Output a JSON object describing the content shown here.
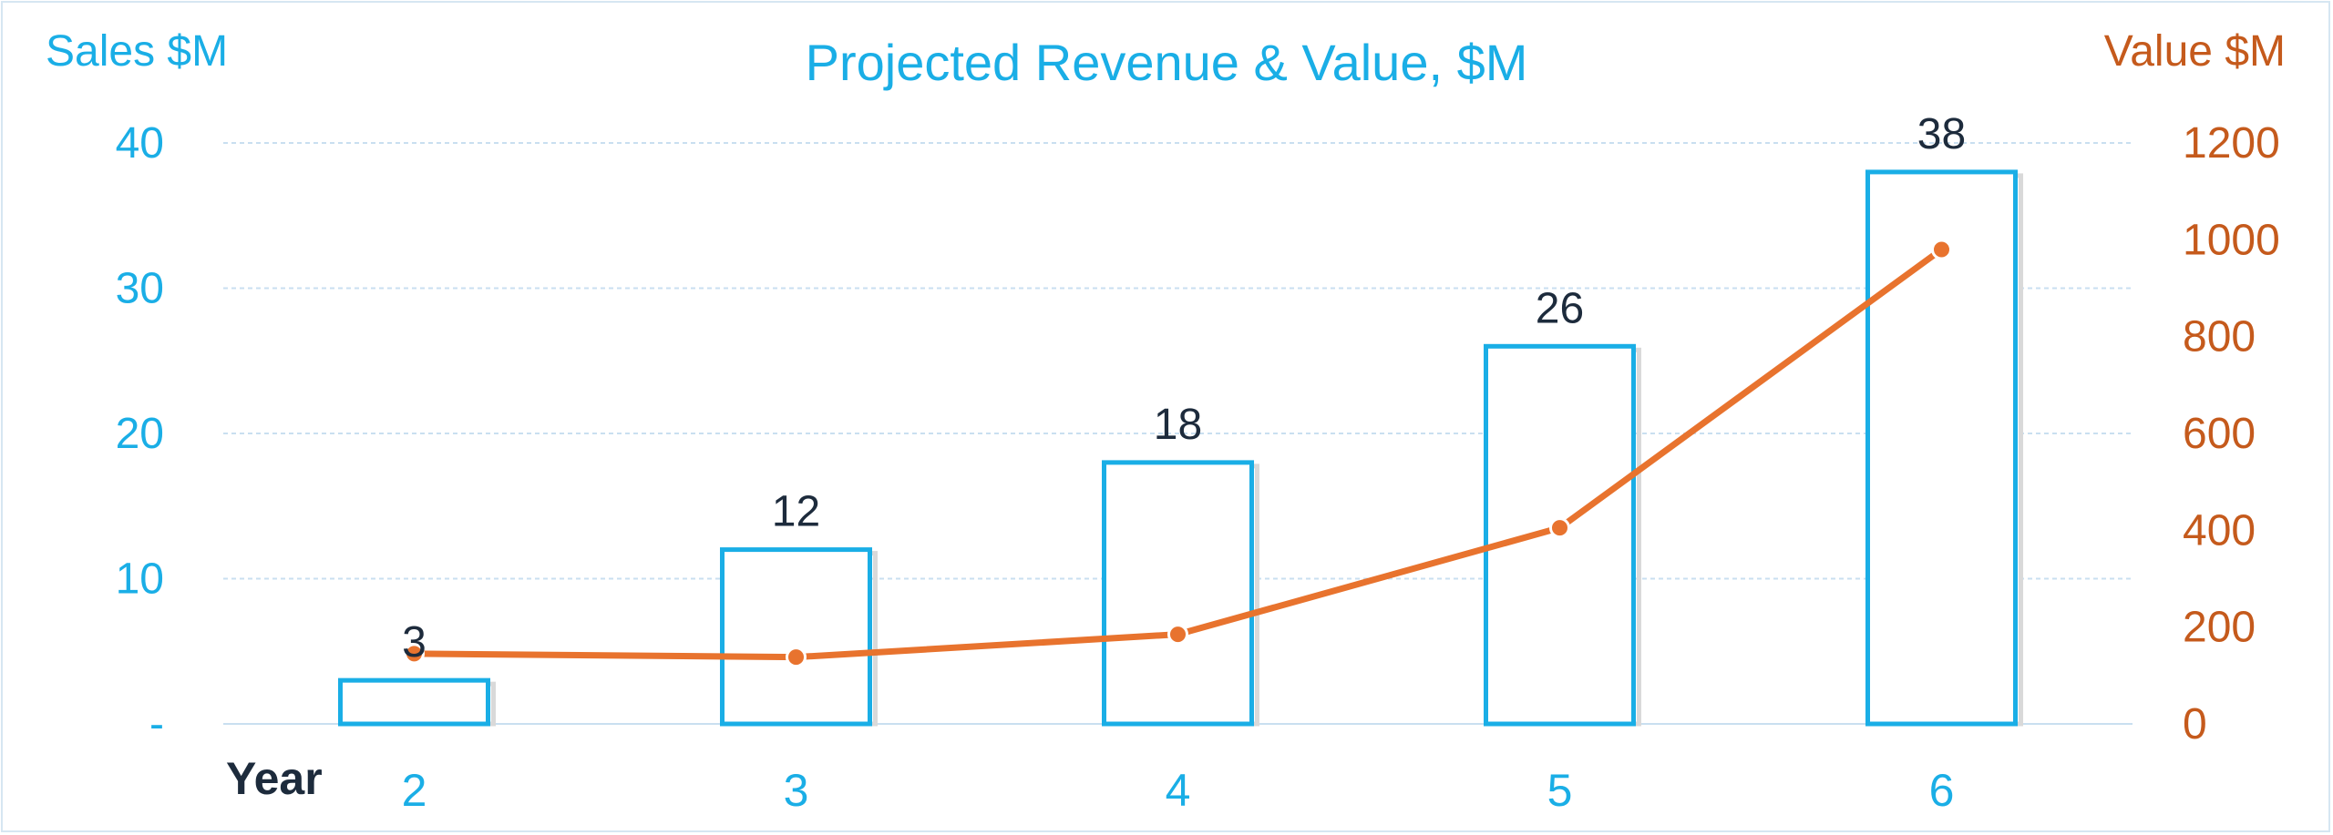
{
  "chart_data": {
    "type": "bar",
    "title": "Projected Revenue & Value, $M",
    "xlabel": "Year",
    "categories": [
      "2",
      "3",
      "4",
      "5",
      "6"
    ],
    "series": [
      {
        "name": "Sales $M",
        "type": "bar",
        "axis": "left",
        "values": [
          3,
          12,
          18,
          26,
          38
        ],
        "data_labels": [
          "3",
          "12",
          "18",
          "26",
          "38"
        ]
      },
      {
        "name": "Value $M",
        "type": "line",
        "axis": "right",
        "values": [
          145,
          138,
          185,
          405,
          980
        ]
      }
    ],
    "y_left": {
      "label": "Sales $M",
      "ylim": [
        0,
        40
      ],
      "ticks": [
        "-",
        "10",
        "20",
        "30",
        "40"
      ],
      "tick_values": [
        0,
        10,
        20,
        30,
        40
      ]
    },
    "y_right": {
      "label": "Value $M",
      "ylim": [
        0,
        1200
      ],
      "ticks": [
        "0",
        "200",
        "400",
        "600",
        "800",
        "1000",
        "1200"
      ],
      "tick_values": [
        0,
        200,
        400,
        600,
        800,
        1000,
        1200
      ]
    },
    "grid": true,
    "legend": "none",
    "colors": {
      "bar": "#1aaee6",
      "line": "#e8732e",
      "gridline": "#c9dff0",
      "left_axis": "#1aaee6",
      "right_axis": "#c55a1c"
    }
  }
}
